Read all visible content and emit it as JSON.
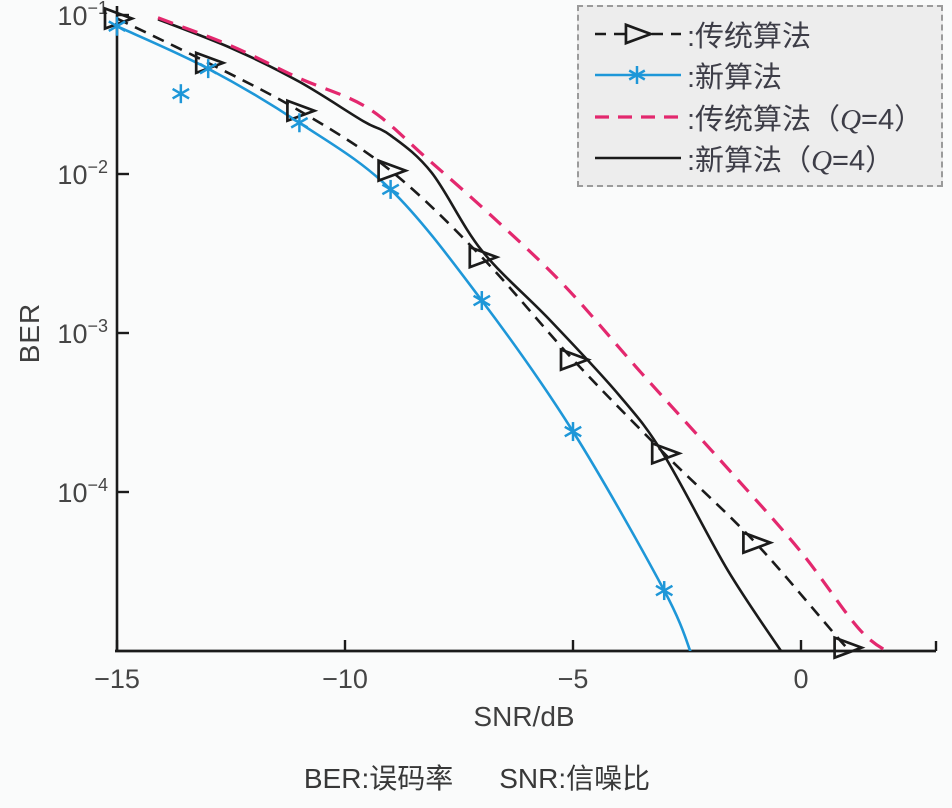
{
  "chart_data": {
    "type": "line",
    "title": "",
    "xlabel": "SNR/dB",
    "ylabel": "BER",
    "grid": false,
    "legend_position": "top-right",
    "caption": {
      "ber": "BER:误码率",
      "snr": "SNR:信噪比"
    },
    "x_axis": {
      "min": -15,
      "max": 3,
      "ticks": [
        -15,
        -10,
        -5,
        0
      ],
      "tick_labels": [
        "−15",
        "−10",
        "−5",
        "0"
      ]
    },
    "y_axis": {
      "scale": "log",
      "min_exp": -5,
      "max_exp": -1,
      "tick_base": "10",
      "tick_exps": [
        -1,
        -2,
        -3,
        -4
      ]
    },
    "colors": {
      "black": "#1b1b1b",
      "blue": "#1e97d8",
      "magenta": "#e3286e",
      "legend_bg": "#ededed"
    },
    "series": [
      {
        "id": "trad",
        "legend_label": ":传统算法",
        "color": "#1b1b1b",
        "line": "dashed",
        "marker": "triangle",
        "line_points": [
          [
            -15,
            0.095
          ],
          [
            -13,
            0.05
          ],
          [
            -11,
            0.025
          ],
          [
            -9,
            0.0105
          ],
          [
            -7,
            0.003
          ],
          [
            -5,
            0.00068
          ],
          [
            -3,
            0.000175
          ],
          [
            -1,
            4.8e-05
          ],
          [
            1,
            1.05e-05
          ],
          [
            1.3,
            9.2e-06
          ]
        ],
        "marker_points": [
          [
            -15,
            0.095
          ],
          [
            -13,
            0.05
          ],
          [
            -11,
            0.025
          ],
          [
            -9,
            0.0105
          ],
          [
            -7,
            0.003
          ],
          [
            -5,
            0.00068
          ],
          [
            -3,
            0.000175
          ],
          [
            -1,
            4.8e-05
          ],
          [
            1,
            1.05e-05
          ]
        ]
      },
      {
        "id": "new",
        "legend_label": ":新算法",
        "color": "#1e97d8",
        "line": "solid",
        "marker": "asterisk",
        "line_points": [
          [
            -15,
            0.085
          ],
          [
            -13,
            0.046
          ],
          [
            -11,
            0.021
          ],
          [
            -9,
            0.008
          ],
          [
            -7,
            0.0016
          ],
          [
            -5,
            0.00024
          ],
          [
            -3,
            2.4e-05
          ],
          [
            -2.4,
            9.5e-06
          ]
        ],
        "marker_points": [
          [
            -15,
            0.085
          ],
          [
            -13.6,
            0.032
          ],
          [
            -13,
            0.046
          ],
          [
            -11,
            0.021
          ],
          [
            -9,
            0.008
          ],
          [
            -7,
            0.0016
          ],
          [
            -5,
            0.00024
          ],
          [
            -3,
            2.4e-05
          ]
        ]
      },
      {
        "id": "trad_q4",
        "legend_label": ":传统算法（Q=4）",
        "color": "#e3286e",
        "line": "dashed",
        "marker": "none",
        "line_points": [
          [
            -14.1,
            0.096
          ],
          [
            -12.5,
            0.064
          ],
          [
            -11,
            0.04
          ],
          [
            -9.5,
            0.026
          ],
          [
            -8.2,
            0.0125
          ],
          [
            -6.8,
            0.0055
          ],
          [
            -5.2,
            0.002
          ],
          [
            -3.5,
            0.00056
          ],
          [
            -1.5,
            0.00013
          ],
          [
            0,
            4.2e-05
          ],
          [
            1.3,
            1.35e-05
          ],
          [
            2.1,
            9.2e-06
          ]
        ]
      },
      {
        "id": "new_q4",
        "legend_label": ":新算法（Q=4）",
        "color": "#1b1b1b",
        "line": "solid",
        "marker": "none",
        "line_points": [
          [
            -14.1,
            0.094
          ],
          [
            -12.5,
            0.062
          ],
          [
            -11,
            0.038
          ],
          [
            -9.6,
            0.0215
          ],
          [
            -9,
            0.0175
          ],
          [
            -8.1,
            0.0102
          ],
          [
            -7,
            0.0033
          ],
          [
            -5.5,
            0.0012
          ],
          [
            -4,
            0.00041
          ],
          [
            -3,
            0.00017
          ],
          [
            -1.6,
            3.2e-05
          ],
          [
            -0.35,
            9.2e-06
          ]
        ]
      }
    ]
  }
}
